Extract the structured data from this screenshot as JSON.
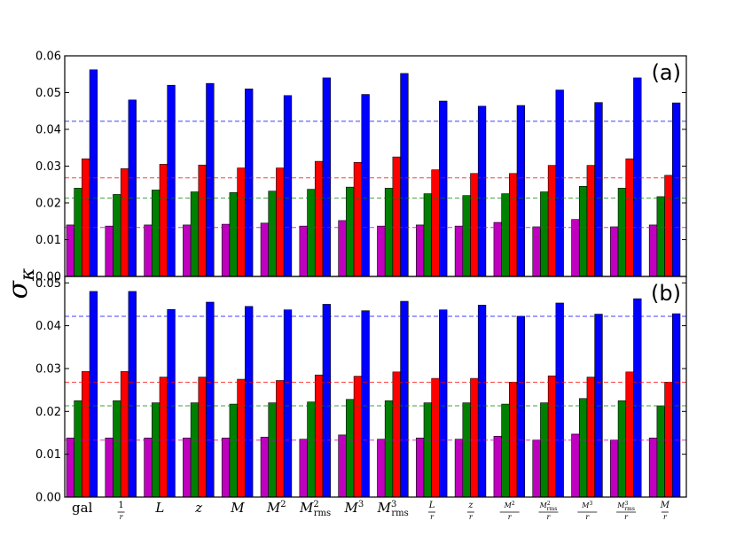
{
  "chart_data": {
    "type": "bar",
    "ylabel": "σ_κ",
    "categories": [
      "gal",
      "1/r",
      "L",
      "z",
      "M",
      "M²",
      "M²_rms",
      "M³",
      "M³_rms",
      "L/r",
      "z/r",
      "M²/r",
      "M²_rms/r",
      "M³/r",
      "M³_rms/r",
      "M/r"
    ],
    "colors": [
      "#bf00bf",
      "#008000",
      "#ff0000",
      "#0000ff"
    ],
    "panels": [
      {
        "label": "(a)",
        "ylim": [
          0,
          0.06
        ],
        "yticks": [
          "0.00",
          "0.01",
          "0.02",
          "0.03",
          "0.04",
          "0.05",
          "0.06"
        ],
        "reference_lines": [
          0.0133,
          0.0213,
          0.0268,
          0.0422
        ],
        "series": [
          {
            "values": [
              0.014,
              0.0137,
              0.014,
              0.014,
              0.0142,
              0.0145,
              0.0137,
              0.0152,
              0.0137,
              0.014,
              0.0137,
              0.0147,
              0.0135,
              0.0155,
              0.0135,
              0.014
            ]
          },
          {
            "values": [
              0.024,
              0.0223,
              0.0235,
              0.023,
              0.0228,
              0.0232,
              0.0237,
              0.0243,
              0.024,
              0.0225,
              0.022,
              0.0225,
              0.023,
              0.0245,
              0.024,
              0.0217
            ]
          },
          {
            "values": [
              0.032,
              0.0293,
              0.0305,
              0.0303,
              0.0295,
              0.0295,
              0.0313,
              0.031,
              0.0325,
              0.029,
              0.028,
              0.028,
              0.0302,
              0.0302,
              0.032,
              0.0275
            ]
          },
          {
            "values": [
              0.0562,
              0.048,
              0.052,
              0.0525,
              0.051,
              0.0492,
              0.054,
              0.0495,
              0.0552,
              0.0477,
              0.0463,
              0.0465,
              0.0507,
              0.0473,
              0.054,
              0.0472
            ]
          }
        ]
      },
      {
        "label": "(b)",
        "ylim": [
          0,
          0.0515
        ],
        "yticks": [
          "0.00",
          "0.01",
          "0.02",
          "0.03",
          "0.04",
          "0.05"
        ],
        "reference_lines": [
          0.0133,
          0.0213,
          0.0268,
          0.0422
        ],
        "series": [
          {
            "values": [
              0.0138,
              0.0138,
              0.0138,
              0.0138,
              0.0138,
              0.014,
              0.0135,
              0.0145,
              0.0135,
              0.0138,
              0.0135,
              0.0142,
              0.0133,
              0.0147,
              0.0133,
              0.0138
            ]
          },
          {
            "values": [
              0.0225,
              0.0225,
              0.022,
              0.022,
              0.0217,
              0.022,
              0.0222,
              0.0228,
              0.0225,
              0.022,
              0.022,
              0.0217,
              0.022,
              0.023,
              0.0225,
              0.0213
            ]
          },
          {
            "values": [
              0.0293,
              0.0293,
              0.028,
              0.028,
              0.0275,
              0.0272,
              0.0285,
              0.0282,
              0.0292,
              0.0277,
              0.0277,
              0.0268,
              0.0283,
              0.028,
              0.0292,
              0.0268
            ]
          },
          {
            "values": [
              0.048,
              0.048,
              0.0438,
              0.0455,
              0.0445,
              0.0437,
              0.045,
              0.0435,
              0.0457,
              0.0437,
              0.0448,
              0.0422,
              0.0453,
              0.0427,
              0.0463,
              0.0428
            ]
          }
        ]
      }
    ]
  }
}
